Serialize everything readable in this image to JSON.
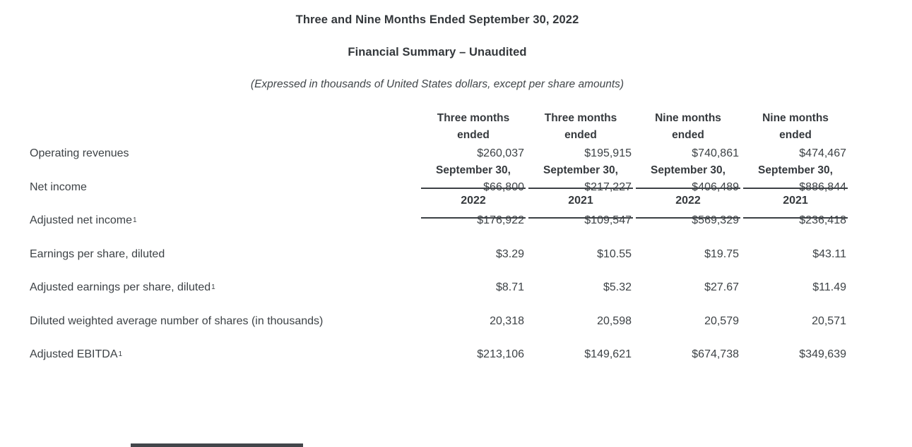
{
  "document": {
    "title": "Three and Nine Months Ended September 30, 2022",
    "subtitle": "Financial Summary – Unaudited",
    "note": "(Expressed in thousands of United States dollars, except per share amounts)"
  },
  "table": {
    "columns": [
      {
        "period_line1": "Three months",
        "period_line2": "ended",
        "date": "September 30,",
        "year": "2022"
      },
      {
        "period_line1": "Three months",
        "period_line2": "ended",
        "date": "September 30,",
        "year": "2021"
      },
      {
        "period_line1": "Nine months",
        "period_line2": "ended",
        "date": "September 30,",
        "year": "2022"
      },
      {
        "period_line1": "Nine months",
        "period_line2": "ended",
        "date": "September 30,",
        "year": "2021"
      }
    ],
    "rows": [
      {
        "label": "Operating revenues",
        "sup": "",
        "values": [
          "$260,037",
          "$195,915",
          "$740,861",
          "$474,467"
        ]
      },
      {
        "label": "Net income",
        "sup": "",
        "values": [
          "$66,800",
          "$217,227",
          "$406,489",
          "$886,844"
        ]
      },
      {
        "label": "Adjusted net income",
        "sup": "1",
        "values": [
          "$176,922",
          "$109,547",
          "$569,329",
          "$236,418"
        ]
      },
      {
        "label": "Earnings per share, diluted",
        "sup": "",
        "values": [
          "$3.29",
          "$10.55",
          "$19.75",
          "$43.11"
        ]
      },
      {
        "label": "Adjusted earnings per share, diluted",
        "sup": "1",
        "values": [
          "$8.71",
          "$5.32",
          "$27.67",
          "$11.49"
        ]
      },
      {
        "label": "Diluted weighted average number of shares (in thousands)",
        "sup": "",
        "values": [
          "20,318",
          "20,598",
          "20,579",
          "20,571"
        ]
      },
      {
        "label": "Adjusted EBITDA",
        "sup": "1",
        "values": [
          "$213,106",
          "$149,621",
          "$674,738",
          "$349,639"
        ]
      }
    ]
  },
  "colors": {
    "background": "#ffffff",
    "text": "#3d4246",
    "heading": "#35393d",
    "rule": "#3c4044",
    "bottom_bar": "#42464a"
  }
}
